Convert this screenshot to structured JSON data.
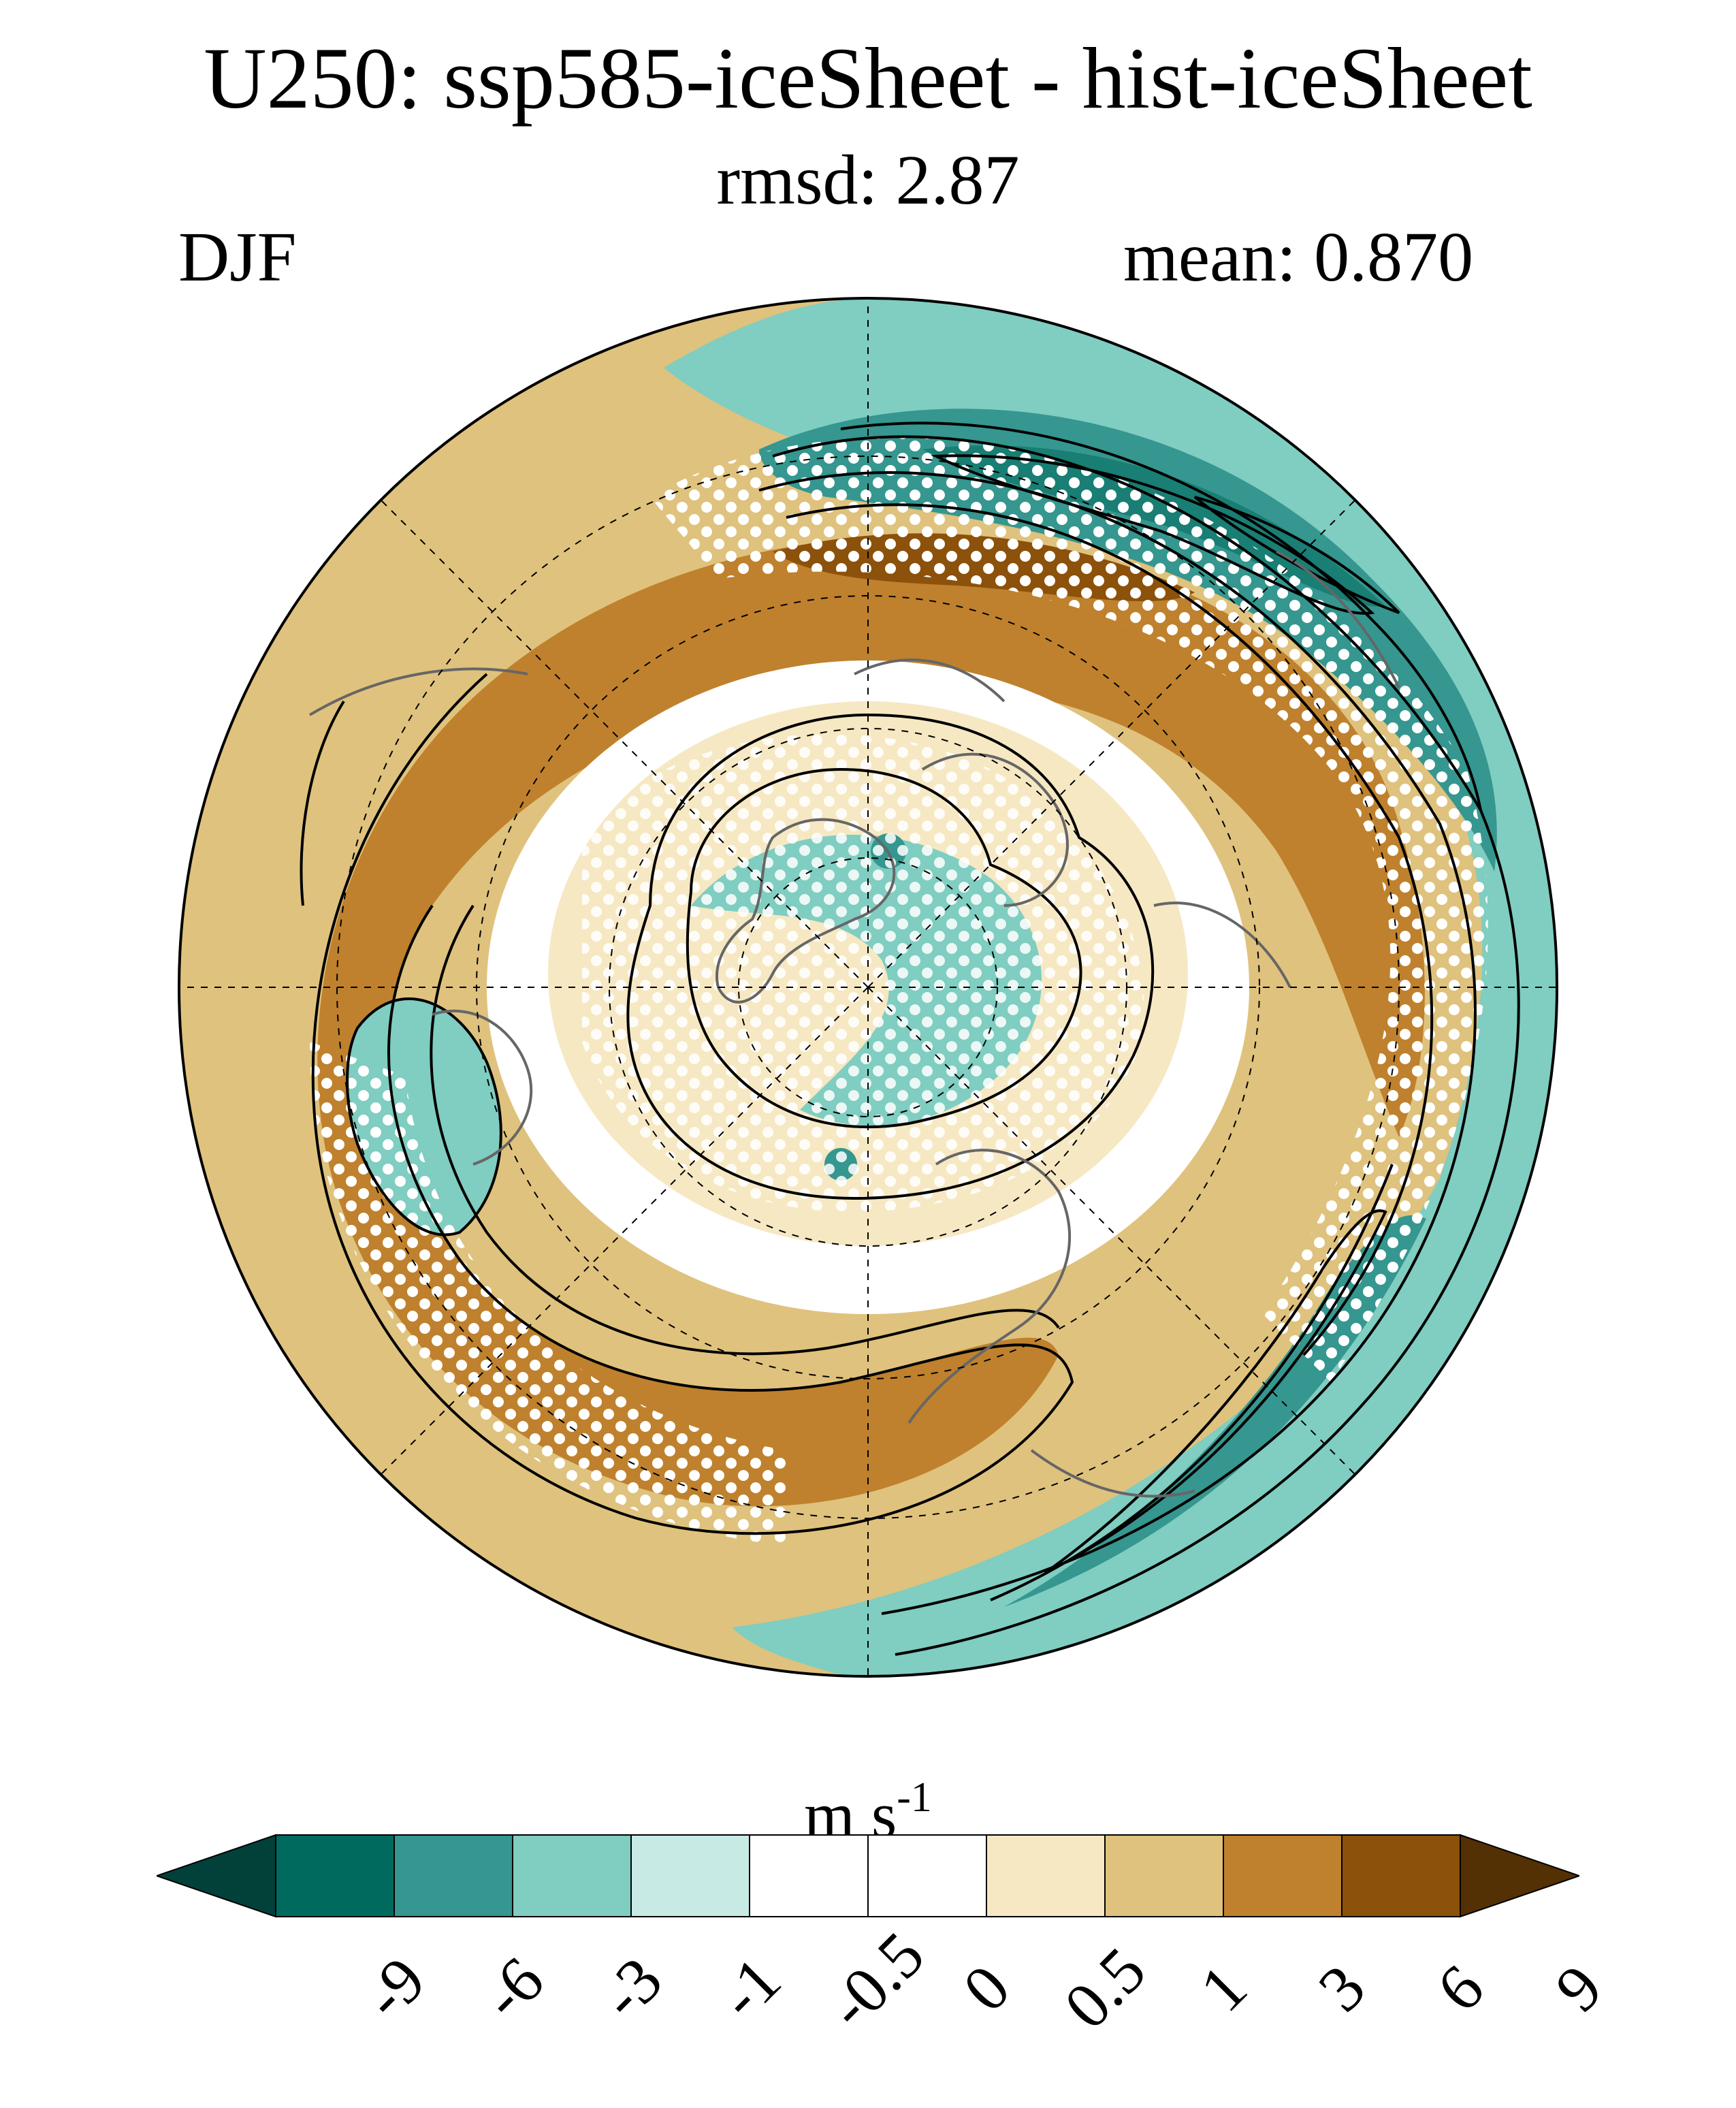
{
  "figure": {
    "title": "U250: ssp585-iceSheet - hist-iceSheet",
    "rmsd": "rmsd: 2.87",
    "season": "DJF",
    "mean": "mean: 0.870",
    "units_base": "m s",
    "units_exp": "-1"
  },
  "colors": {
    "neg_extend": "#01413a",
    "levels": [
      "#016a5f",
      "#35978f",
      "#80cdc1",
      "#c7eae5",
      "#ffffff",
      "#ffffff",
      "#f6e8c3",
      "#dfc27d",
      "#bf812d",
      "#8c510a"
    ],
    "pos_extend": "#543005",
    "stipple": "#ffffff",
    "coast": "#666666",
    "contour": "#000000"
  },
  "colorbar": {
    "tick_labels": [
      "-9",
      "-6",
      "-3",
      "-1",
      "-0.5",
      "0",
      "0.5",
      "1",
      "3",
      "6",
      "9"
    ]
  },
  "map": {
    "projection": "north polar stereographic",
    "grid": "dashed",
    "stippling": true
  }
}
